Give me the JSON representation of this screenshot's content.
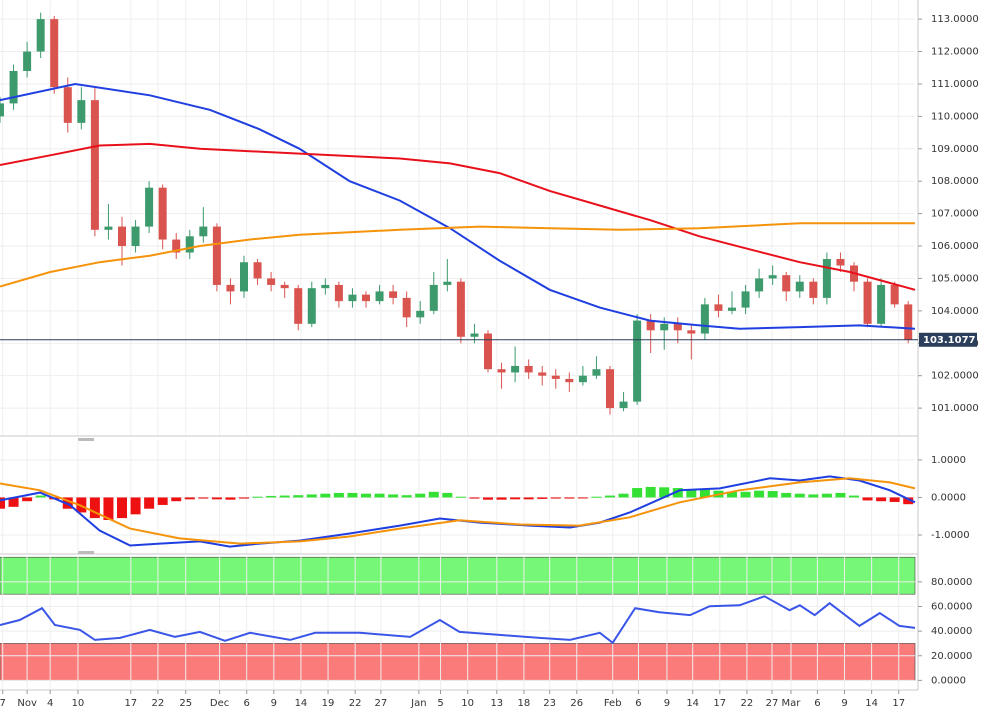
{
  "chart_data": [
    {
      "type": "candlestick",
      "x": [
        0,
        2,
        4,
        6,
        8,
        10,
        12,
        14,
        16,
        18,
        20,
        22,
        24,
        26,
        28,
        30,
        32,
        34,
        36,
        38,
        40,
        42,
        44,
        46,
        48,
        50,
        52,
        54,
        56,
        58,
        60,
        62,
        64,
        66,
        68,
        70,
        72,
        74,
        76,
        78,
        80,
        82,
        84,
        86,
        88,
        90,
        92,
        94,
        96,
        98,
        100,
        102,
        104,
        106,
        108,
        110,
        112,
        114,
        116,
        118,
        120,
        122,
        124,
        126,
        128,
        130,
        132,
        134
      ],
      "open": [
        110.0,
        110.4,
        111.4,
        112.0,
        113.0,
        110.9,
        109.8,
        110.5,
        106.5,
        106.6,
        106.0,
        106.6,
        107.8,
        106.2,
        105.8,
        106.3,
        106.6,
        104.8,
        104.6,
        105.5,
        105.0,
        104.8,
        104.7,
        103.6,
        104.7,
        104.8,
        104.3,
        104.5,
        104.3,
        104.6,
        104.4,
        103.8,
        104.0,
        104.8,
        104.9,
        103.2,
        103.3,
        102.2,
        102.1,
        102.3,
        102.1,
        102.0,
        101.9,
        101.8,
        102.0,
        102.2,
        101.0,
        101.2,
        103.7,
        103.4,
        103.6,
        103.4,
        103.3,
        104.2,
        104.0,
        104.1,
        104.6,
        105.0,
        105.1,
        104.6,
        104.9,
        104.4,
        105.6,
        105.4,
        104.9,
        103.6,
        104.8,
        104.2
      ],
      "high": [
        110.6,
        111.6,
        112.3,
        113.2,
        113.1,
        111.2,
        110.9,
        110.9,
        107.3,
        106.9,
        106.8,
        108.0,
        107.9,
        106.4,
        106.5,
        107.2,
        106.7,
        105.0,
        105.7,
        105.6,
        105.2,
        104.9,
        104.8,
        104.9,
        105.0,
        104.9,
        104.7,
        104.6,
        104.8,
        104.8,
        104.6,
        104.3,
        105.2,
        105.6,
        105.0,
        103.6,
        103.4,
        102.4,
        102.9,
        102.5,
        102.3,
        102.2,
        102.1,
        102.3,
        102.6,
        102.3,
        101.5,
        103.9,
        103.9,
        103.8,
        103.8,
        103.6,
        104.4,
        104.5,
        104.6,
        104.8,
        105.3,
        105.4,
        105.2,
        105.1,
        105.0,
        105.8,
        105.8,
        105.5,
        105.0,
        105.0,
        104.9,
        104.3
      ],
      "low": [
        109.8,
        110.2,
        111.2,
        111.8,
        110.7,
        109.5,
        109.6,
        106.3,
        106.2,
        105.4,
        105.8,
        106.4,
        105.9,
        105.6,
        105.6,
        106.1,
        104.6,
        104.2,
        104.4,
        104.8,
        104.6,
        104.4,
        103.4,
        103.5,
        104.5,
        104.1,
        104.1,
        104.1,
        104.2,
        104.2,
        103.5,
        103.6,
        103.9,
        104.6,
        103.0,
        103.0,
        102.1,
        101.6,
        101.8,
        101.9,
        101.7,
        101.6,
        101.5,
        101.7,
        101.9,
        100.8,
        100.9,
        101.1,
        102.7,
        102.8,
        103.0,
        102.5,
        103.1,
        103.8,
        103.9,
        103.9,
        104.4,
        104.8,
        104.3,
        104.4,
        104.2,
        104.2,
        105.2,
        104.6,
        103.5,
        103.5,
        104.1,
        103.0
      ],
      "close": [
        110.4,
        111.4,
        112.0,
        113.0,
        110.9,
        109.8,
        110.5,
        106.5,
        106.6,
        106.0,
        106.6,
        107.8,
        106.2,
        105.8,
        106.3,
        106.6,
        104.8,
        104.6,
        105.5,
        105.0,
        104.8,
        104.7,
        103.6,
        104.7,
        104.8,
        104.3,
        104.5,
        104.3,
        104.6,
        104.4,
        103.8,
        104.0,
        104.8,
        104.9,
        103.2,
        103.3,
        102.2,
        102.1,
        102.3,
        102.1,
        102.0,
        101.9,
        101.8,
        102.0,
        102.2,
        101.0,
        101.2,
        103.7,
        103.4,
        103.6,
        103.4,
        103.3,
        104.2,
        104.0,
        104.1,
        104.6,
        105.0,
        105.1,
        104.6,
        104.9,
        104.4,
        105.6,
        105.4,
        104.9,
        103.6,
        104.8,
        104.2,
        103.1
      ],
      "up_color": "#3d9a6c",
      "down_color": "#d9534f",
      "series": [
        {
          "color": "#1f3fe0",
          "x": [
            0,
            11.1,
            22.1,
            31,
            38.3,
            44.2,
            51.6,
            59,
            66.4,
            73.7,
            81.1,
            88.5,
            95.9,
            103.2,
            109.1,
            118,
            126.8,
            135
          ],
          "values": [
            110.5,
            111.0,
            110.65,
            110.2,
            109.6,
            109.0,
            108.0,
            107.4,
            106.55,
            105.55,
            104.65,
            104.1,
            103.7,
            103.55,
            103.45,
            103.5,
            103.55,
            103.45
          ]
        },
        {
          "color": "#e8111b",
          "x": [
            0,
            7.4,
            14.7,
            22.1,
            29.5,
            44.2,
            59,
            66.4,
            73.7,
            81.1,
            88.5,
            95.9,
            103.2,
            110.6,
            118,
            125.4,
            135
          ],
          "values": [
            108.5,
            108.8,
            109.1,
            109.15,
            109.0,
            108.85,
            108.7,
            108.55,
            108.25,
            107.7,
            107.25,
            106.8,
            106.3,
            105.9,
            105.5,
            105.2,
            104.65
          ]
        },
        {
          "color": "#f5930a",
          "x": [
            0,
            7.4,
            14.7,
            22.1,
            29.5,
            36.9,
            44.2,
            59,
            70.8,
            81.1,
            91.4,
            103.2,
            118,
            125.4,
            135
          ],
          "values": [
            104.75,
            105.2,
            105.5,
            105.7,
            106.0,
            106.2,
            106.35,
            106.5,
            106.6,
            106.55,
            106.5,
            106.55,
            106.7,
            106.7,
            106.7
          ]
        }
      ],
      "xlim": [
        0,
        135
      ],
      "ylim": [
        100.17,
        113.59
      ],
      "yticks": [
        {
          "value": 101,
          "label": "101.0000"
        },
        {
          "value": 102,
          "label": "102.0000"
        },
        {
          "value": 103,
          "label": "103.0000"
        },
        {
          "value": 104,
          "label": "104.0000"
        },
        {
          "value": 105,
          "label": "105.0000"
        },
        {
          "value": 106,
          "label": "106.0000"
        },
        {
          "value": 107,
          "label": "107.0000"
        },
        {
          "value": 108,
          "label": "108.0000"
        },
        {
          "value": 109,
          "label": "109.0000"
        },
        {
          "value": 110,
          "label": "110.0000"
        },
        {
          "value": 111,
          "label": "111.0000"
        },
        {
          "value": 112,
          "label": "112.0000"
        },
        {
          "value": 113,
          "label": "113.0000"
        }
      ],
      "last_price": {
        "value": 103.1077,
        "label": "103.1077"
      },
      "grid": true
    },
    {
      "type": "macd",
      "x": [
        0,
        2,
        4,
        6,
        8,
        10,
        12,
        14,
        16,
        18,
        20,
        22,
        24,
        26,
        28,
        30,
        32,
        34,
        36,
        38,
        40,
        42,
        44,
        46,
        48,
        50,
        52,
        54,
        56,
        58,
        60,
        62,
        64,
        66,
        68,
        70,
        72,
        74,
        76,
        78,
        80,
        82,
        84,
        86,
        88,
        90,
        92,
        94,
        96,
        98,
        100,
        102,
        104,
        106,
        108,
        110,
        112,
        114,
        116,
        118,
        120,
        122,
        124,
        126,
        128,
        130,
        132,
        134
      ],
      "values": [
        -0.3,
        -0.25,
        -0.1,
        0.05,
        -0.05,
        -0.3,
        -0.4,
        -0.55,
        -0.6,
        -0.55,
        -0.45,
        -0.3,
        -0.2,
        -0.1,
        -0.05,
        -0.03,
        -0.05,
        -0.06,
        -0.03,
        0.02,
        0.04,
        0.05,
        0.06,
        0.08,
        0.1,
        0.12,
        0.12,
        0.1,
        0.1,
        0.08,
        0.06,
        0.1,
        0.15,
        0.12,
        0.02,
        -0.03,
        -0.06,
        -0.06,
        -0.05,
        -0.05,
        -0.04,
        -0.03,
        -0.03,
        -0.02,
        0.02,
        0.05,
        0.1,
        0.25,
        0.28,
        0.27,
        0.25,
        0.2,
        0.22,
        0.18,
        0.15,
        0.15,
        0.18,
        0.17,
        0.12,
        0.1,
        0.08,
        0.1,
        0.12,
        0.05,
        -0.08,
        -0.1,
        -0.12,
        -0.18
      ],
      "pos_color": "#33e033",
      "neg_color": "#ee1111",
      "series": [
        {
          "color": "#1f3fe0",
          "x": [
            0,
            5.9,
            10.3,
            14.7,
            19.2,
            23.6,
            29.5,
            33.9,
            38.3,
            44.2,
            51.6,
            59,
            64.9,
            70.8,
            78.2,
            84.1,
            88.5,
            92.9,
            100.3,
            106.2,
            113.6,
            118,
            122.4,
            126.8,
            131.3,
            135
          ],
          "values": [
            -0.08,
            0.13,
            -0.2,
            -0.88,
            -1.28,
            -1.23,
            -1.17,
            -1.31,
            -1.23,
            -1.15,
            -0.96,
            -0.75,
            -0.56,
            -0.67,
            -0.75,
            -0.8,
            -0.67,
            -0.4,
            0.19,
            0.24,
            0.51,
            0.45,
            0.56,
            0.45,
            0.19,
            -0.13
          ]
        },
        {
          "color": "#f5930a",
          "x": [
            0,
            5.9,
            11.8,
            19.2,
            26.5,
            35.4,
            44.2,
            51.6,
            59,
            67.8,
            76.7,
            85.5,
            92.9,
            100.3,
            109.1,
            118,
            125.4,
            131.3,
            135
          ],
          "values": [
            0.37,
            0.19,
            -0.21,
            -0.83,
            -1.09,
            -1.23,
            -1.17,
            -1.04,
            -0.83,
            -0.61,
            -0.72,
            -0.75,
            -0.53,
            -0.13,
            0.19,
            0.4,
            0.51,
            0.4,
            0.24
          ]
        }
      ],
      "xlim": [
        0,
        135
      ],
      "ylim": [
        -1.48,
        1.53
      ],
      "yticks": [
        {
          "value": 1,
          "label": "1.0000"
        },
        {
          "value": 0,
          "label": "0.0000"
        },
        {
          "value": -1,
          "label": "-1.0000"
        }
      ]
    },
    {
      "type": "line",
      "series": [
        {
          "color": "#3a55e8",
          "x": [
            0,
            2.9,
            6.2,
            8.1,
            11.8,
            14,
            17.7,
            22.1,
            25.8,
            29.5,
            33.2,
            36.9,
            42.8,
            46.5,
            53.1,
            60.5,
            64.9,
            67.8,
            73.7,
            79.6,
            84.1,
            88.5,
            90.4,
            93.7,
            97.3,
            101.8,
            104.7,
            109.1,
            112.8,
            116.5,
            118,
            120.2,
            122.4,
            126.8,
            129.8,
            132.7,
            135
          ],
          "values": [
            45,
            49,
            58.6,
            45,
            41,
            32.9,
            34.5,
            41,
            35.3,
            39.4,
            32.1,
            38.6,
            32.9,
            38.6,
            38.6,
            35.3,
            49,
            39.4,
            36.9,
            34.5,
            32.9,
            38.6,
            30.5,
            58.6,
            55.4,
            53,
            60.2,
            61,
            68.3,
            57,
            61,
            53,
            62.7,
            44.2,
            54.6,
            44.2,
            42.6
          ]
        }
      ],
      "bands": [
        {
          "range": [
            70,
            100
          ],
          "color": "#77f777"
        },
        {
          "range": [
            0,
            30
          ],
          "color": "#fb7a7a"
        }
      ],
      "xlim": [
        0,
        135
      ],
      "ylim": [
        -7,
        101
      ],
      "yticks": [
        {
          "value": 0,
          "label": "0.0000"
        },
        {
          "value": 20,
          "label": "20.0000"
        },
        {
          "value": 40,
          "label": "40.0000"
        },
        {
          "value": 60,
          "label": "60.0000"
        },
        {
          "value": 80,
          "label": "80.0000"
        }
      ],
      "xticks": [
        {
          "value": 0.4,
          "label": "7"
        },
        {
          "value": 4.0,
          "label": "Nov"
        },
        {
          "value": 7.4,
          "label": "4"
        },
        {
          "value": 11.5,
          "label": "10"
        },
        {
          "value": 19.3,
          "label": "17"
        },
        {
          "value": 23.3,
          "label": "22"
        },
        {
          "value": 27.4,
          "label": "25"
        },
        {
          "value": 32.4,
          "label": "Dec"
        },
        {
          "value": 36.4,
          "label": "6"
        },
        {
          "value": 40.4,
          "label": "9"
        },
        {
          "value": 44.4,
          "label": "14"
        },
        {
          "value": 48.4,
          "label": "19"
        },
        {
          "value": 52.4,
          "label": "22"
        },
        {
          "value": 56.2,
          "label": "27"
        },
        {
          "value": 61.8,
          "label": "Jan"
        },
        {
          "value": 65.0,
          "label": "5"
        },
        {
          "value": 69.0,
          "label": "10"
        },
        {
          "value": 73.3,
          "label": "13"
        },
        {
          "value": 77.3,
          "label": "18"
        },
        {
          "value": 81.1,
          "label": "23"
        },
        {
          "value": 85.1,
          "label": "26"
        },
        {
          "value": 90.4,
          "label": "Feb"
        },
        {
          "value": 94.2,
          "label": "6"
        },
        {
          "value": 98.4,
          "label": "9"
        },
        {
          "value": 102.2,
          "label": "14"
        },
        {
          "value": 106.2,
          "label": "17"
        },
        {
          "value": 110.2,
          "label": "22"
        },
        {
          "value": 113.9,
          "label": "27"
        },
        {
          "value": 116.7,
          "label": "Mar"
        },
        {
          "value": 120.6,
          "label": "6"
        },
        {
          "value": 124.6,
          "label": "9"
        },
        {
          "value": 128.6,
          "label": "14"
        },
        {
          "value": 132.6,
          "label": "17"
        }
      ]
    }
  ]
}
